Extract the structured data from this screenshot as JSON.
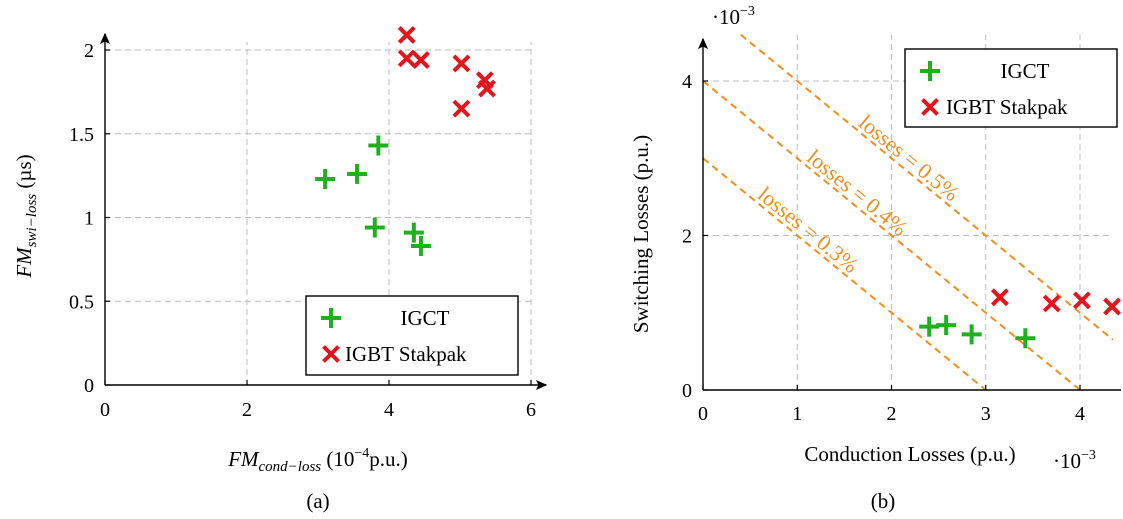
{
  "chart_data": [
    {
      "panel": "(a)",
      "type": "scatter",
      "xlabel_main": "FM",
      "xlabel_sub": "cond−loss",
      "xlabel_unit_pre": " (10",
      "xlabel_unit_exp": "−4",
      "xlabel_unit_post": "p.u.)",
      "ylabel_main": "FM",
      "ylabel_sub": "swi−loss",
      "ylabel_unit": " (µs)",
      "xlim": [
        0,
        6
      ],
      "ylim": [
        0,
        2.15
      ],
      "xticks": [
        "0",
        "2",
        "4",
        "6"
      ],
      "yticks": [
        "0",
        "0.5",
        "1",
        "1.5",
        "2"
      ],
      "grid": true,
      "legend_position": "bottom-right",
      "series": [
        {
          "name": "IGCT",
          "marker": "plus",
          "color": "#1fb01f",
          "x": [
            3.1,
            3.55,
            3.85,
            3.8,
            4.35,
            4.45
          ],
          "y": [
            1.23,
            1.26,
            1.43,
            0.94,
            0.91,
            0.83
          ]
        },
        {
          "name": "IGBT Stakpak",
          "marker": "cross",
          "color": "#e5141c",
          "x": [
            4.25,
            4.25,
            4.45,
            5.02,
            5.02,
            5.35,
            5.38
          ],
          "y": [
            2.09,
            1.95,
            1.94,
            1.92,
            1.65,
            1.82,
            1.77
          ]
        }
      ]
    },
    {
      "panel": "(b)",
      "type": "scatter",
      "xlabel": "Conduction Losses (p.u.)",
      "ylabel": "Switching Losses (p.u.)",
      "x_multiplier_base": "·10",
      "x_multiplier_exp": "−3",
      "y_multiplier_base": "·10",
      "y_multiplier_exp": "−3",
      "xlim": [
        0,
        4.35
      ],
      "ylim": [
        0,
        4.6
      ],
      "xticks": [
        "0",
        "1",
        "2",
        "3",
        "4"
      ],
      "yticks": [
        "0",
        "2",
        "4"
      ],
      "grid": true,
      "legend_position": "top-right",
      "iso_loss_lines": [
        {
          "label": "losses = 0.3%",
          "total": 3
        },
        {
          "label": "losses = 0.4%",
          "total": 4
        },
        {
          "label": "losses = 0.5%",
          "total": 5
        }
      ],
      "series": [
        {
          "name": "IGCT",
          "marker": "plus",
          "color": "#1fb01f",
          "x": [
            2.4,
            2.58,
            2.85,
            3.42
          ],
          "y": [
            0.82,
            0.84,
            0.72,
            0.67
          ]
        },
        {
          "name": "IGBT Stakpak",
          "marker": "cross",
          "color": "#e5141c",
          "x": [
            3.15,
            3.7,
            4.02,
            4.34
          ],
          "y": [
            1.2,
            1.12,
            1.16,
            1.08
          ]
        }
      ]
    }
  ],
  "captions": [
    "(a)",
    "(b)"
  ]
}
